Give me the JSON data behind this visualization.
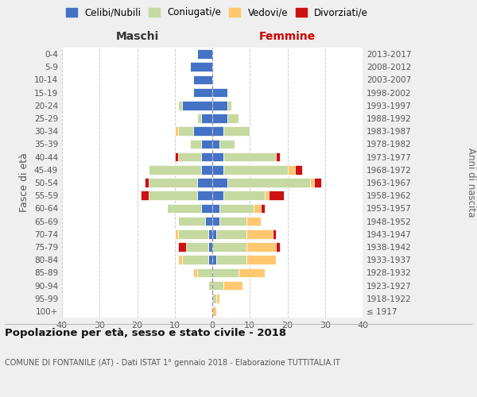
{
  "age_groups": [
    "100+",
    "95-99",
    "90-94",
    "85-89",
    "80-84",
    "75-79",
    "70-74",
    "65-69",
    "60-64",
    "55-59",
    "50-54",
    "45-49",
    "40-44",
    "35-39",
    "30-34",
    "25-29",
    "20-24",
    "15-19",
    "10-14",
    "5-9",
    "0-4"
  ],
  "birth_years": [
    "≤ 1917",
    "1918-1922",
    "1923-1927",
    "1928-1932",
    "1933-1937",
    "1938-1942",
    "1943-1947",
    "1948-1952",
    "1953-1957",
    "1958-1962",
    "1963-1967",
    "1968-1972",
    "1973-1977",
    "1978-1982",
    "1983-1987",
    "1988-1992",
    "1993-1997",
    "1998-2002",
    "2003-2007",
    "2008-2012",
    "2013-2017"
  ],
  "colors": {
    "celibi": "#4472c4",
    "coniugati": "#c5d9a0",
    "vedovi": "#ffc76e",
    "divorziati": "#cc1111"
  },
  "maschi": {
    "celibi": [
      0,
      0,
      0,
      0,
      1,
      1,
      1,
      2,
      3,
      4,
      4,
      3,
      3,
      3,
      5,
      3,
      8,
      5,
      5,
      6,
      4
    ],
    "coniugati": [
      0,
      0,
      1,
      4,
      7,
      6,
      8,
      7,
      9,
      13,
      13,
      14,
      6,
      3,
      4,
      1,
      1,
      0,
      0,
      0,
      0
    ],
    "vedovi": [
      0,
      0,
      0,
      1,
      1,
      0,
      1,
      0,
      0,
      0,
      0,
      0,
      0,
      0,
      1,
      0,
      0,
      0,
      0,
      0,
      0
    ],
    "divorziati": [
      0,
      0,
      0,
      0,
      0,
      2,
      0,
      0,
      0,
      2,
      1,
      0,
      1,
      0,
      0,
      0,
      0,
      0,
      0,
      0,
      0
    ]
  },
  "femmine": {
    "celibi": [
      0,
      0,
      0,
      0,
      1,
      0,
      1,
      2,
      2,
      3,
      4,
      3,
      3,
      2,
      3,
      4,
      4,
      4,
      0,
      0,
      0
    ],
    "coniugati": [
      0,
      1,
      3,
      7,
      8,
      9,
      8,
      7,
      9,
      11,
      22,
      17,
      14,
      4,
      7,
      3,
      1,
      0,
      0,
      0,
      0
    ],
    "vedovi": [
      1,
      1,
      5,
      7,
      8,
      8,
      7,
      4,
      2,
      1,
      1,
      2,
      0,
      0,
      0,
      0,
      0,
      0,
      0,
      0,
      0
    ],
    "divorziati": [
      0,
      0,
      0,
      0,
      0,
      1,
      1,
      0,
      1,
      4,
      2,
      2,
      1,
      0,
      0,
      0,
      0,
      0,
      0,
      0,
      0
    ]
  },
  "xlim": 40,
  "title": "Popolazione per età, sesso e stato civile - 2018",
  "subtitle": "COMUNE DI FONTANILE (AT) - Dati ISTAT 1° gennaio 2018 - Elaborazione TUTTITALIA.IT",
  "xlabel_left": "Maschi",
  "xlabel_right": "Femmine",
  "ylabel_left": "Fasce di età",
  "ylabel_right": "Anni di nascita",
  "legend_labels": [
    "Celibi/Nubili",
    "Coniugati/e",
    "Vedovi/e",
    "Divorziati/e"
  ],
  "bg_color": "#efefef",
  "plot_bg": "#ffffff",
  "grid_color": "#cccccc",
  "maschi_label_color": "#333333",
  "femmine_label_color": "#cc0000"
}
